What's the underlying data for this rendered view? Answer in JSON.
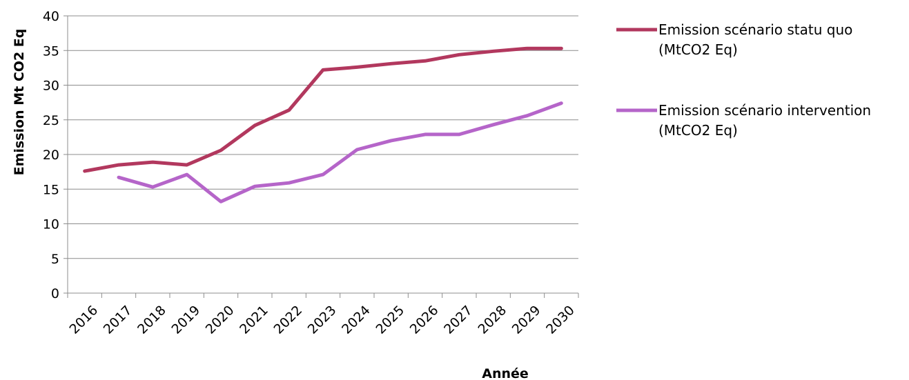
{
  "chart_data": {
    "type": "line",
    "title": "",
    "xlabel": "Année",
    "ylabel": "Emission Mt CO2 Eq",
    "ylim": [
      0,
      40
    ],
    "yticks": [
      0,
      5,
      10,
      15,
      20,
      25,
      30,
      35,
      40
    ],
    "grid": true,
    "legend_position": "right",
    "categories": [
      "2016",
      "2017",
      "2018",
      "2019",
      "2020",
      "2021",
      "2022",
      "2023",
      "2024",
      "2025",
      "2026",
      "2027",
      "2028",
      "2029",
      "2030"
    ],
    "series": [
      {
        "legend_lines": [
          "Emission scénario statu quo",
          "(MtCO2 Eq)"
        ],
        "color": "#b2385e",
        "values": [
          17.6,
          18.5,
          18.9,
          18.5,
          20.6,
          24.2,
          26.4,
          32.2,
          32.6,
          33.1,
          33.5,
          34.4,
          34.9,
          35.3,
          35.3
        ]
      },
      {
        "legend_lines": [
          "Emission scénario intervention",
          "(MtCO2 Eq)"
        ],
        "color": "#b565c9",
        "values": [
          null,
          16.7,
          15.3,
          17.1,
          13.2,
          15.4,
          15.9,
          17.1,
          20.7,
          22.0,
          22.9,
          22.9,
          24.3,
          25.6,
          27.4
        ]
      }
    ]
  }
}
